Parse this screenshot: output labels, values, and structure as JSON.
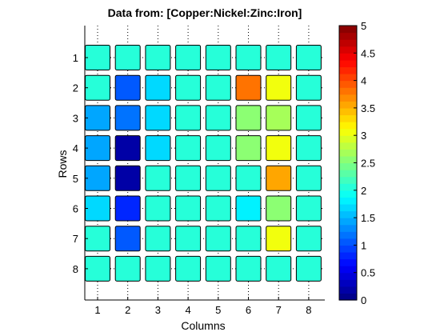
{
  "chart_data": {
    "type": "heatmap",
    "title": "Data from: [Copper:Nickel:Zinc:Iron]",
    "xlabel": "Columns",
    "ylabel": "Rows",
    "x_ticks": [
      "1",
      "2",
      "3",
      "4",
      "5",
      "6",
      "7",
      "8"
    ],
    "y_ticks": [
      "1",
      "2",
      "3",
      "4",
      "5",
      "6",
      "7",
      "8"
    ],
    "values": [
      [
        2.0,
        2.0,
        2.0,
        2.0,
        2.0,
        2.0,
        2.0,
        2.0
      ],
      [
        2.0,
        1.0,
        1.7,
        2.0,
        2.0,
        3.8,
        3.1,
        2.0
      ],
      [
        1.45,
        1.15,
        1.7,
        2.0,
        2.0,
        2.6,
        2.7,
        2.0
      ],
      [
        1.45,
        0.2,
        1.7,
        2.0,
        2.0,
        2.5,
        3.1,
        2.0
      ],
      [
        1.4,
        0.2,
        2.0,
        2.0,
        2.0,
        2.0,
        3.6,
        2.0
      ],
      [
        1.7,
        0.75,
        2.0,
        2.0,
        2.0,
        1.8,
        2.6,
        2.0
      ],
      [
        2.0,
        1.0,
        2.0,
        2.0,
        2.0,
        2.0,
        3.0,
        2.0
      ],
      [
        2.0,
        2.0,
        2.0,
        2.0,
        2.0,
        2.0,
        2.0,
        2.0
      ]
    ],
    "zlim": [
      0,
      5
    ],
    "colorbar": {
      "ticks": [
        "0",
        "0.5",
        "1",
        "1.5",
        "2",
        "2.5",
        "3",
        "3.5",
        "4",
        "4.5",
        "5"
      ],
      "levels": 40,
      "colormap": "jet"
    },
    "grid": "dotted"
  }
}
